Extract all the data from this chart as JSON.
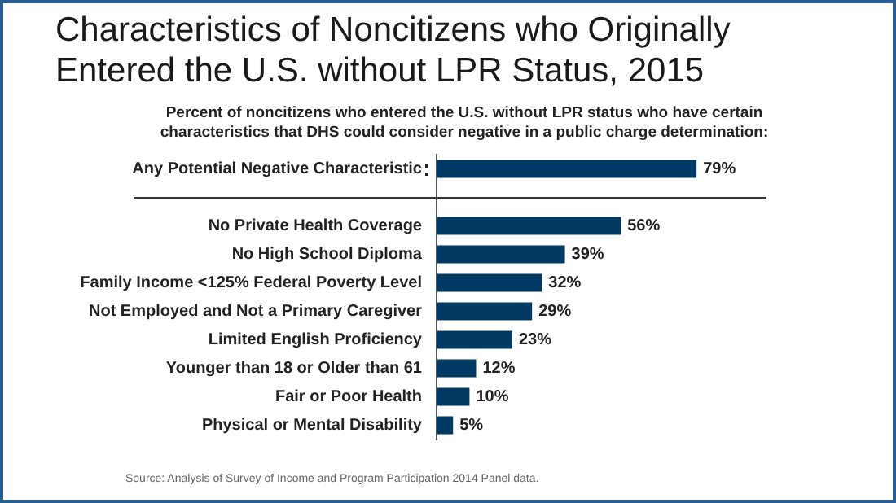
{
  "chart_data": {
    "type": "bar",
    "orientation": "horizontal",
    "title": "Characteristics of Noncitizens who Originally Entered the U.S. without LPR Status, 2015",
    "subtitle": "Percent of noncitizens who entered the U.S. without LPR status who have certain characteristics that DHS could consider negative in a public charge determination:",
    "categories": [
      "Any Potential Negative Characteristic",
      null,
      "No Private Health Coverage",
      "No High School Diploma",
      "Family Income <125% Federal Poverty Level",
      "Not Employed and Not a Primary Caregiver",
      "Limited English Proficiency",
      "Younger than 18 or Older than 61",
      "Fair or Poor Health",
      "Physical or Mental Disability"
    ],
    "values": [
      79,
      null,
      56,
      39,
      32,
      29,
      23,
      12,
      10,
      5
    ],
    "value_labels": [
      "79%",
      null,
      "56%",
      "39%",
      "32%",
      "29%",
      "23%",
      "12%",
      "10%",
      "5%"
    ],
    "color": "#003a63",
    "xlim": [
      0,
      100
    ],
    "tick_labels": "y",
    "grid": false,
    "annotations": [
      "Source: Analysis of Survey of Income and Program Participation 2014 Panel data."
    ]
  }
}
